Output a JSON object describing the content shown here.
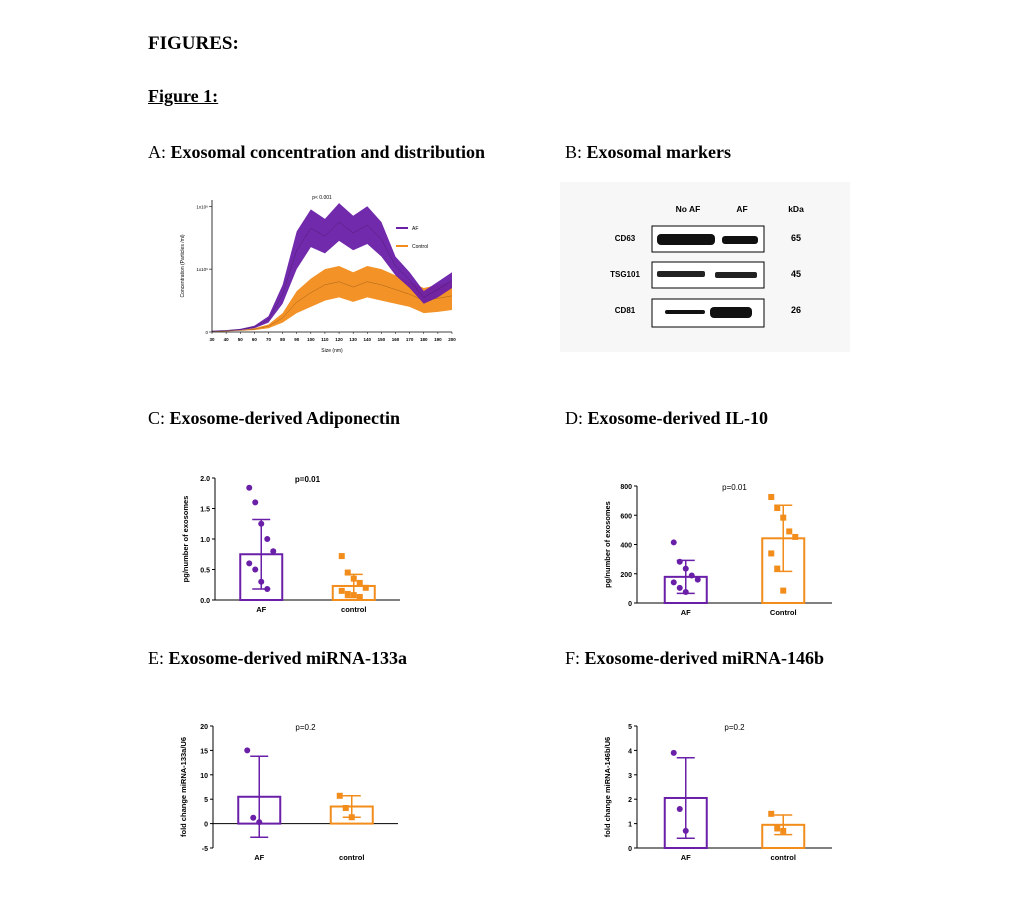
{
  "heading": "FIGURES:",
  "figure_label": "Figure 1:",
  "panels": {
    "A": {
      "letter": "A:",
      "title": "Exosomal concentration and distribution"
    },
    "B": {
      "letter": "B:",
      "title": "Exosomal markers"
    },
    "C": {
      "letter": "C:",
      "title": "Exosome-derived Adiponectin"
    },
    "D": {
      "letter": "D:",
      "title": "Exosome-derived IL-10"
    },
    "E": {
      "letter": "E:",
      "title": "Exosome-derived miRNA-133a"
    },
    "F": {
      "letter": "F:",
      "title": "Exosome-derived miRNA-146b"
    }
  },
  "blot": {
    "columns": [
      "No AF",
      "AF",
      "kDa"
    ],
    "rows": [
      {
        "marker": "CD63",
        "kda": "65"
      },
      {
        "marker": "TSG101",
        "kda": "45"
      },
      {
        "marker": "CD81",
        "kda": "26"
      }
    ]
  },
  "chart_data": [
    {
      "panel": "A",
      "type": "area",
      "annotation": "p< 0.001",
      "ylabel": "Concentration (Particles /ml)",
      "xlabel": "Size (nm)",
      "y_tick_labels": [
        "0",
        "1x10⁶",
        "1x10⁶"
      ],
      "xlim": [
        30,
        200
      ],
      "ylim": [
        0,
        2.1
      ],
      "x": [
        30,
        40,
        50,
        60,
        70,
        80,
        90,
        100,
        110,
        120,
        130,
        140,
        150,
        160,
        170,
        180,
        190,
        200
      ],
      "series": [
        {
          "name": "AF",
          "color": "#6a1fa8",
          "upper": [
            0.02,
            0.03,
            0.05,
            0.1,
            0.25,
            0.75,
            1.6,
            1.95,
            1.8,
            2.05,
            1.85,
            2.0,
            1.75,
            1.2,
            0.95,
            0.65,
            0.8,
            0.95
          ],
          "lower": [
            0.01,
            0.02,
            0.03,
            0.06,
            0.15,
            0.45,
            1.0,
            1.35,
            1.25,
            1.45,
            1.3,
            1.4,
            1.2,
            0.9,
            0.7,
            0.45,
            0.55,
            0.7
          ]
        },
        {
          "name": "Control",
          "color": "#f28c1a",
          "upper": [
            0.01,
            0.02,
            0.03,
            0.06,
            0.12,
            0.3,
            0.65,
            0.85,
            1.0,
            1.05,
            0.95,
            1.05,
            1.0,
            0.9,
            0.8,
            0.7,
            0.75,
            0.8
          ],
          "lower": [
            0.0,
            0.01,
            0.02,
            0.03,
            0.06,
            0.15,
            0.3,
            0.4,
            0.5,
            0.55,
            0.48,
            0.55,
            0.5,
            0.45,
            0.4,
            0.3,
            0.32,
            0.35
          ]
        }
      ]
    },
    {
      "panel": "C",
      "type": "bar",
      "annotation": "p=0.01",
      "ylabel": "pg/number of exosomes",
      "categories": [
        "AF",
        "control"
      ],
      "values": [
        0.75,
        0.23
      ],
      "errors": [
        0.57,
        0.19
      ],
      "ylim": [
        0,
        2.0
      ],
      "yticks": [
        "0.0",
        "0.5",
        "1.0",
        "1.5",
        "2.0"
      ],
      "points": [
        [
          1.84,
          1.6,
          1.25,
          1.0,
          0.8,
          0.6,
          0.5,
          0.3,
          0.18
        ],
        [
          0.72,
          0.45,
          0.35,
          0.28,
          0.2,
          0.15,
          0.1,
          0.08,
          0.05
        ]
      ]
    },
    {
      "panel": "D",
      "type": "bar",
      "annotation": "p=0.01",
      "ylabel": "pg/number of exosomes",
      "categories": [
        "AF",
        "Control"
      ],
      "values": [
        190,
        470
      ],
      "errors": [
        120,
        240
      ],
      "ylim": [
        0,
        850
      ],
      "yticks": [
        "0",
        "200",
        "400",
        "600",
        "800"
      ],
      "points": [
        [
          440,
          300,
          250,
          200,
          170,
          150,
          110,
          80
        ],
        [
          770,
          690,
          620,
          520,
          480,
          360,
          250,
          90
        ]
      ]
    },
    {
      "panel": "E",
      "type": "bar",
      "annotation": "p=0.2",
      "ylabel": "fold change miRNA-133a/U6",
      "categories": [
        "AF",
        "control"
      ],
      "values": [
        5.5,
        3.5
      ],
      "errors": [
        8.3,
        2.2
      ],
      "ylim": [
        -5,
        20
      ],
      "yticks": [
        "-5",
        "0",
        "5",
        "10",
        "15",
        "20"
      ],
      "points": [
        [
          15,
          1.2,
          0.3
        ],
        [
          5.7,
          3.2,
          1.3
        ]
      ]
    },
    {
      "panel": "F",
      "type": "bar",
      "annotation": "p=0.2",
      "ylabel": "fold change miRNA-146b/U6",
      "categories": [
        "AF",
        "control"
      ],
      "values": [
        2.05,
        0.95
      ],
      "errors": [
        1.65,
        0.4
      ],
      "ylim": [
        0,
        5
      ],
      "yticks": [
        "0",
        "1",
        "2",
        "3",
        "4",
        "5"
      ],
      "points": [
        [
          3.9,
          1.6,
          0.7
        ],
        [
          1.4,
          0.8,
          0.7
        ]
      ]
    }
  ]
}
